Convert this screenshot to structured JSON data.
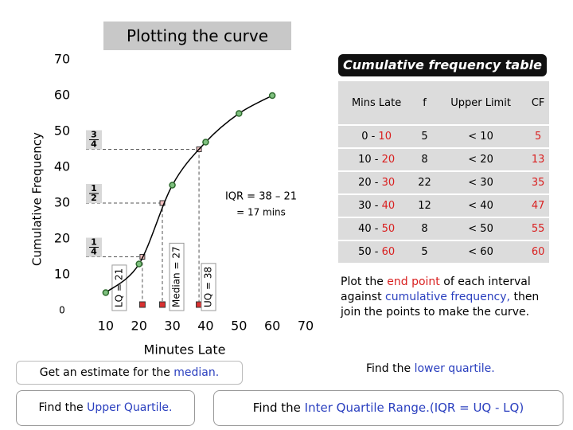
{
  "title": "Plotting the curve",
  "chart_data": {
    "type": "line",
    "x": [
      10,
      20,
      30,
      40,
      50,
      60
    ],
    "series": [
      {
        "values": [
          5,
          13,
          35,
          47,
          55,
          60
        ],
        "color": "#2e6b2e"
      }
    ],
    "xlim": [
      0,
      70
    ],
    "ylim": [
      0,
      70
    ],
    "xticks": [
      10,
      20,
      30,
      40,
      50,
      60,
      70
    ],
    "yticks": [
      0,
      10,
      20,
      30,
      40,
      50,
      60,
      70
    ],
    "xlabel": "Minutes Late",
    "ylabel": "Cumulative Frequency",
    "quartiles": [
      {
        "label": "LQ = 21",
        "x": 21,
        "y": 15,
        "num": "1",
        "den": "4"
      },
      {
        "label": "Median = 27",
        "x": 27,
        "y": 30,
        "num": "1",
        "den": "2"
      },
      {
        "label": "UQ = 38",
        "x": 38,
        "y": 45,
        "num": "3",
        "den": "4"
      }
    ],
    "marker_color": "#d93030",
    "guide_color": "#555555",
    "iqr": [
      "IQR  = 38 – 21",
      "= 17 mins"
    ]
  },
  "table": {
    "title": "Cumulative frequency table",
    "header": [
      "Mins Late",
      "f",
      "Upper Limit",
      "CF"
    ],
    "rows": [
      {
        "interval": [
          "0 - ",
          "10"
        ],
        "f": 5,
        "upper": "< 10",
        "cf": 5
      },
      {
        "interval": [
          "10 - ",
          "20"
        ],
        "f": 8,
        "upper": "< 20",
        "cf": 13
      },
      {
        "interval": [
          "20 - ",
          "30"
        ],
        "f": 22,
        "upper": "< 30",
        "cf": 35
      },
      {
        "interval": [
          "30 - ",
          "40"
        ],
        "f": 12,
        "upper": "< 40",
        "cf": 47
      },
      {
        "interval": [
          "40 - ",
          "50"
        ],
        "f": 8,
        "upper": "< 50",
        "cf": 55
      },
      {
        "interval": [
          "50 - ",
          "60"
        ],
        "f": 5,
        "upper": "< 60",
        "cf": 60
      }
    ],
    "accent": "#d92020"
  },
  "notes": {
    "plot": [
      {
        "text": "Plot the ",
        "color": "#000000"
      },
      {
        "text": "end point",
        "color": "#d92020"
      },
      {
        "text": " of each interval against ",
        "color": "#000000"
      },
      {
        "text": "cumulative frequency,",
        "color": "#2a3fbf"
      },
      {
        "text": " then join the points to make the curve.",
        "color": "#000000"
      }
    ],
    "median": [
      {
        "text": "Get an estimate for the ",
        "color": "#000000"
      },
      {
        "text": "median.",
        "color": "#2a3fbf"
      }
    ],
    "lower": [
      {
        "text": "Find the ",
        "color": "#000000"
      },
      {
        "text": "lower quartile.",
        "color": "#2a3fbf"
      }
    ],
    "upper": [
      {
        "text": "Find the ",
        "color": "#000000"
      },
      {
        "text": "Upper Quartile.",
        "color": "#2a3fbf"
      }
    ],
    "iqr": [
      {
        "text": "Find the ",
        "color": "#000000"
      },
      {
        "text": "Inter Quartile Range.(IQR = UQ - LQ)",
        "color": "#2a3fbf"
      }
    ]
  }
}
